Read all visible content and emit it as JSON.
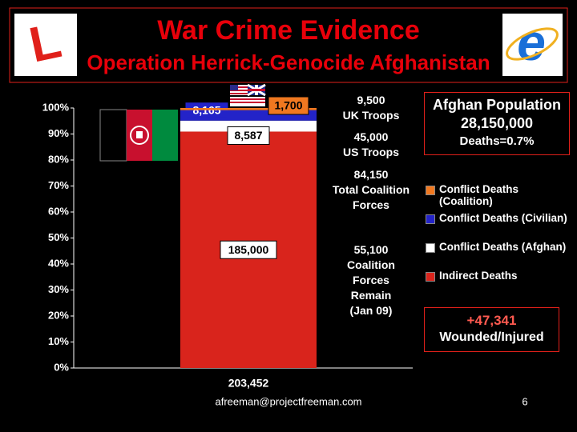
{
  "chart_data": {
    "type": "bar",
    "percent_stacked": true,
    "title": "War Crime Evidence",
    "subtitle": "Operation Herrick-Genocide Afghanistan",
    "categories": [
      "203,452"
    ],
    "series": [
      {
        "name": "Indirect Deaths",
        "color": "#d9241c",
        "values": [
          185000
        ],
        "value_labels": [
          "185,000"
        ]
      },
      {
        "name": "Conflict Deaths (Afghan)",
        "color": "#ffffff",
        "values": [
          8587
        ],
        "value_labels": [
          "8,587"
        ]
      },
      {
        "name": "Conflict Deaths (Civilian)",
        "color": "#2323c8",
        "values": [
          8165
        ],
        "value_labels": [
          "8,165"
        ]
      },
      {
        "name": "Conflict Deaths (Coalition)",
        "color": "#f07820",
        "values": [
          1700
        ],
        "value_labels": [
          "1,700"
        ]
      }
    ],
    "ylim": [
      0,
      100
    ],
    "yticks": [
      {
        "value": 0,
        "label": "0%"
      },
      {
        "value": 10,
        "label": "10%"
      },
      {
        "value": 20,
        "label": "20%"
      },
      {
        "value": 30,
        "label": "30%"
      },
      {
        "value": 40,
        "label": "40%"
      },
      {
        "value": 50,
        "label": "50%"
      },
      {
        "value": 60,
        "label": "60%"
      },
      {
        "value": 70,
        "label": "70%"
      },
      {
        "value": 80,
        "label": "80%"
      },
      {
        "value": 90,
        "label": "90%"
      },
      {
        "value": 100,
        "label": "100%"
      }
    ],
    "grid": false,
    "legend": "right",
    "annotations": [
      "9,500\nUK Troops",
      "45,000\nUS Troops",
      "84,150\nTotal Coalition\nForces",
      "55,100\nCoalition\nForces\nRemain\n(Jan 09)"
    ],
    "population_box": {
      "title": "Afghan Population",
      "value": "28,150,000",
      "note": "Deaths=0.7%"
    },
    "wounded_box": {
      "value": "+47,341",
      "label": "Wounded/Injured"
    },
    "footer": "afreeman@projectfreeman.com",
    "page_number": "6"
  }
}
